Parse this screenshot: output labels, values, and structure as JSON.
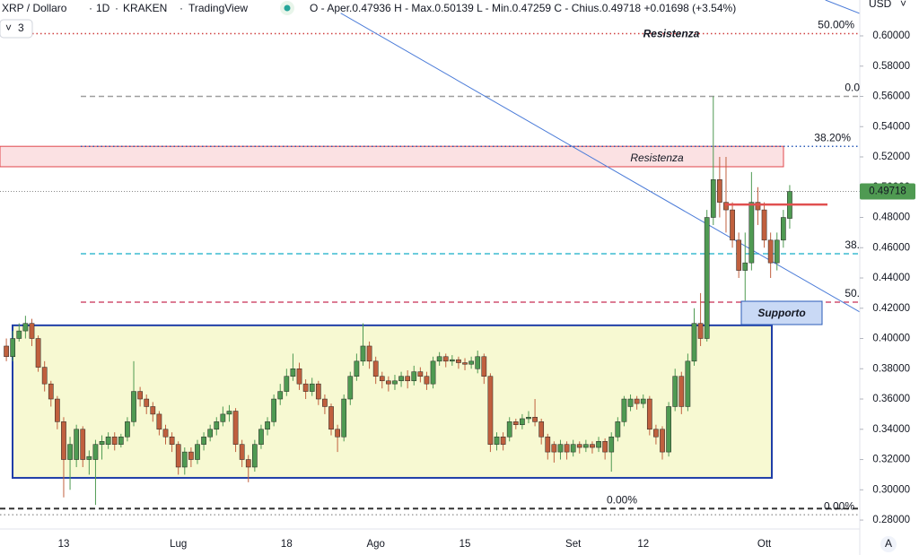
{
  "header": {
    "symbol": "XRP / Dollaro",
    "interval": "1D",
    "exchange": "KRAKEN",
    "source": "TradingView",
    "ohlc": "O - Aper.0.47936  H - Max.0.50139  L - Min.0.47259  C - Chius.0.49718  +0.01698 (+3.54%)",
    "indicators": "3",
    "currency": "USD",
    "scale_mode": "A"
  },
  "chart_data": {
    "type": "candlestick",
    "up_color": "#4f9a52",
    "down_color": "#c0603e",
    "categories": [
      null,
      null,
      null,
      null,
      null,
      null,
      null,
      null,
      null,
      "13",
      null,
      null,
      null,
      null,
      null,
      null,
      null,
      null,
      null,
      null,
      null,
      null,
      null,
      null,
      null,
      null,
      null,
      "Lug",
      null,
      null,
      null,
      null,
      null,
      null,
      null,
      null,
      null,
      null,
      null,
      null,
      null,
      null,
      null,
      null,
      "18",
      null,
      null,
      null,
      null,
      null,
      null,
      null,
      null,
      null,
      null,
      null,
      null,
      null,
      "Ago",
      null,
      null,
      null,
      null,
      null,
      null,
      null,
      null,
      null,
      null,
      null,
      null,
      null,
      "15",
      null,
      null,
      null,
      null,
      null,
      null,
      null,
      null,
      null,
      null,
      null,
      null,
      null,
      null,
      null,
      null,
      "Set",
      null,
      null,
      null,
      null,
      null,
      null,
      null,
      null,
      null,
      null,
      "12",
      null,
      null,
      null,
      null,
      null,
      null,
      null,
      null,
      null,
      null,
      null,
      null,
      null,
      null,
      null,
      null,
      null,
      null,
      "Ott",
      null,
      null,
      null,
      null
    ],
    "open": [
      0.395,
      0.388,
      0.4,
      0.405,
      0.41,
      0.4,
      0.381,
      0.37,
      0.36,
      0.345,
      0.32,
      0.32,
      0.34,
      0.32,
      0.32,
      0.33,
      0.33,
      0.335,
      0.33,
      0.335,
      0.345,
      0.365,
      0.36,
      0.355,
      0.35,
      0.34,
      0.335,
      0.33,
      0.315,
      0.325,
      0.32,
      0.33,
      0.335,
      0.34,
      0.345,
      0.35,
      0.352,
      0.33,
      0.32,
      0.315,
      0.33,
      0.34,
      0.345,
      0.36,
      0.365,
      0.375,
      0.38,
      0.37,
      0.365,
      0.37,
      0.36,
      0.355,
      0.34,
      0.335,
      0.36,
      0.375,
      0.385,
      0.395,
      0.385,
      0.375,
      0.372,
      0.37,
      0.372,
      0.375,
      0.372,
      0.378,
      0.375,
      0.37,
      0.385,
      0.388,
      0.385,
      0.386,
      0.384,
      0.383,
      0.38,
      0.388,
      0.375,
      0.33,
      0.335,
      0.335,
      0.345,
      0.343,
      0.347,
      0.348,
      0.345,
      0.335,
      0.33,
      0.325,
      0.33,
      0.325,
      0.33,
      0.328,
      0.33,
      0.328,
      0.332,
      0.325,
      0.335,
      0.345,
      0.355,
      0.36,
      0.357,
      0.36,
      0.34,
      0.34,
      0.325,
      0.355,
      0.375,
      0.355,
      0.385,
      0.41,
      0.4,
      0.48,
      0.505,
      0.49,
      0.485,
      0.465,
      0.445,
      0.45,
      0.49,
      0.485,
      0.465,
      0.45,
      0.465,
      0.47936
    ],
    "high": [
      0.4,
      0.405,
      0.41,
      0.415,
      0.413,
      0.402,
      0.385,
      0.372,
      0.362,
      0.348,
      0.335,
      0.343,
      0.342,
      0.326,
      0.333,
      0.336,
      0.338,
      0.338,
      0.337,
      0.348,
      0.385,
      0.368,
      0.363,
      0.358,
      0.352,
      0.343,
      0.338,
      0.332,
      0.328,
      0.328,
      0.333,
      0.338,
      0.343,
      0.348,
      0.355,
      0.356,
      0.354,
      0.333,
      0.323,
      0.333,
      0.343,
      0.348,
      0.363,
      0.37,
      0.38,
      0.39,
      0.384,
      0.373,
      0.374,
      0.372,
      0.363,
      0.357,
      0.343,
      0.363,
      0.378,
      0.39,
      0.41,
      0.398,
      0.388,
      0.378,
      0.375,
      0.376,
      0.378,
      0.379,
      0.382,
      0.381,
      0.378,
      0.388,
      0.391,
      0.39,
      0.389,
      0.388,
      0.387,
      0.388,
      0.392,
      0.39,
      0.377,
      0.338,
      0.338,
      0.348,
      0.347,
      0.35,
      0.352,
      0.36,
      0.347,
      0.337,
      0.332,
      0.333,
      0.332,
      0.333,
      0.332,
      0.333,
      0.332,
      0.335,
      0.334,
      0.338,
      0.348,
      0.362,
      0.363,
      0.362,
      0.363,
      0.362,
      0.343,
      0.342,
      0.358,
      0.38,
      0.378,
      0.39,
      0.42,
      0.43,
      0.485,
      0.56,
      0.52,
      0.52,
      0.49,
      0.47,
      0.47,
      0.51,
      0.5,
      0.49,
      0.47,
      0.47,
      0.485,
      0.50139
    ],
    "low": [
      0.385,
      0.385,
      0.398,
      0.4,
      0.395,
      0.378,
      0.365,
      0.355,
      0.34,
      0.295,
      0.3,
      0.315,
      0.315,
      0.31,
      0.29,
      0.32,
      0.327,
      0.326,
      0.328,
      0.332,
      0.342,
      0.355,
      0.35,
      0.345,
      0.336,
      0.33,
      0.325,
      0.31,
      0.31,
      0.315,
      0.317,
      0.326,
      0.332,
      0.336,
      0.342,
      0.345,
      0.325,
      0.315,
      0.305,
      0.312,
      0.327,
      0.336,
      0.342,
      0.356,
      0.362,
      0.372,
      0.366,
      0.36,
      0.362,
      0.356,
      0.35,
      0.336,
      0.325,
      0.332,
      0.356,
      0.372,
      0.382,
      0.38,
      0.37,
      0.367,
      0.365,
      0.366,
      0.368,
      0.367,
      0.369,
      0.371,
      0.366,
      0.367,
      0.382,
      0.381,
      0.382,
      0.38,
      0.379,
      0.38,
      0.377,
      0.37,
      0.325,
      0.326,
      0.326,
      0.332,
      0.34,
      0.34,
      0.344,
      0.342,
      0.33,
      0.32,
      0.318,
      0.32,
      0.32,
      0.322,
      0.324,
      0.325,
      0.324,
      0.325,
      0.32,
      0.312,
      0.332,
      0.342,
      0.352,
      0.353,
      0.354,
      0.336,
      0.33,
      0.32,
      0.322,
      0.352,
      0.35,
      0.352,
      0.382,
      0.395,
      0.398,
      0.475,
      0.48,
      0.47,
      0.46,
      0.44,
      0.425,
      0.445,
      0.475,
      0.46,
      0.44,
      0.445,
      0.46,
      0.47259
    ],
    "close": [
      0.388,
      0.4,
      0.405,
      0.41,
      0.4,
      0.381,
      0.37,
      0.36,
      0.345,
      0.32,
      0.33,
      0.34,
      0.32,
      0.322,
      0.33,
      0.332,
      0.335,
      0.33,
      0.335,
      0.345,
      0.365,
      0.36,
      0.355,
      0.35,
      0.34,
      0.335,
      0.33,
      0.315,
      0.325,
      0.32,
      0.33,
      0.335,
      0.34,
      0.345,
      0.35,
      0.352,
      0.33,
      0.32,
      0.315,
      0.33,
      0.34,
      0.345,
      0.36,
      0.365,
      0.375,
      0.38,
      0.37,
      0.365,
      0.37,
      0.36,
      0.355,
      0.34,
      0.335,
      0.36,
      0.375,
      0.385,
      0.395,
      0.385,
      0.375,
      0.372,
      0.37,
      0.372,
      0.375,
      0.372,
      0.378,
      0.375,
      0.37,
      0.385,
      0.388,
      0.385,
      0.386,
      0.384,
      0.383,
      0.385,
      0.388,
      0.375,
      0.33,
      0.335,
      0.33,
      0.345,
      0.343,
      0.347,
      0.348,
      0.345,
      0.335,
      0.325,
      0.325,
      0.33,
      0.325,
      0.33,
      0.328,
      0.33,
      0.328,
      0.332,
      0.325,
      0.335,
      0.345,
      0.36,
      0.36,
      0.357,
      0.36,
      0.34,
      0.335,
      0.325,
      0.355,
      0.375,
      0.355,
      0.385,
      0.41,
      0.4,
      0.48,
      0.505,
      0.49,
      0.485,
      0.465,
      0.445,
      0.45,
      0.49,
      0.485,
      0.465,
      0.45,
      0.465,
      0.48,
      0.49718
    ],
    "xlim": [
      -1,
      134
    ],
    "ylim": [
      0.2741,
      0.6237
    ],
    "yticks": [
      {
        "value": 0.28,
        "label": "0.28000"
      },
      {
        "value": 0.3,
        "label": "0.30000"
      },
      {
        "value": 0.32,
        "label": "0.32000"
      },
      {
        "value": 0.34,
        "label": "0.34000"
      },
      {
        "value": 0.36,
        "label": "0.36000"
      },
      {
        "value": 0.38,
        "label": "0.38000"
      },
      {
        "value": 0.4,
        "label": "0.40000"
      },
      {
        "value": 0.42,
        "label": "0.42000"
      },
      {
        "value": 0.44,
        "label": "0.44000"
      },
      {
        "value": 0.46,
        "label": "0.46000"
      },
      {
        "value": 0.48,
        "label": "0.48000"
      },
      {
        "value": 0.5,
        "label": "0.50000"
      },
      {
        "value": 0.52,
        "label": "0.52000"
      },
      {
        "value": 0.54,
        "label": "0.54000"
      },
      {
        "value": 0.56,
        "label": "0.56000"
      },
      {
        "value": 0.58,
        "label": "0.58000"
      },
      {
        "value": 0.6,
        "label": "0.60000"
      }
    ],
    "grid": false,
    "levels": [
      {
        "label": "50.00%",
        "value": 0.6015,
        "color": "#d04040",
        "style": "dotted"
      },
      {
        "label": "0.0",
        "value": 0.56,
        "color": "#9e9e9e",
        "style": "dashed"
      },
      {
        "label": "38.20%",
        "value": 0.527,
        "color": "#2a5bb8",
        "style": "dotted"
      },
      {
        "label": "38.",
        "value": 0.456,
        "color": "#3bbcd0",
        "style": "dashed"
      },
      {
        "label": "50.",
        "value": 0.424,
        "color": "#d05070",
        "style": "dashed"
      },
      {
        "label": "0.00%",
        "value": 0.2876,
        "color": "#333333",
        "style": "dashed"
      },
      {
        "label": "0.00%",
        "value": 0.2835,
        "color": "#9e9e9e",
        "style": "dotted"
      }
    ],
    "resistance_top_label": "Resistenza",
    "resistance_zone": {
      "label": "Resistenza",
      "top": 0.527,
      "bottom": 0.5135
    },
    "range_box": {
      "top": 0.4087,
      "bottom": 0.3079
    },
    "support_box": {
      "label": "Supporto",
      "top": 0.4246,
      "bottom": 0.4092
    },
    "pivot_line": 0.4885,
    "trendlines": [
      {
        "from": [
          52.5,
          0.615
        ],
        "to": [
          134,
          0.4175
        ]
      },
      {
        "from": [
          128.6,
          0.6237
        ],
        "to": [
          134,
          0.6148
        ]
      }
    ]
  }
}
